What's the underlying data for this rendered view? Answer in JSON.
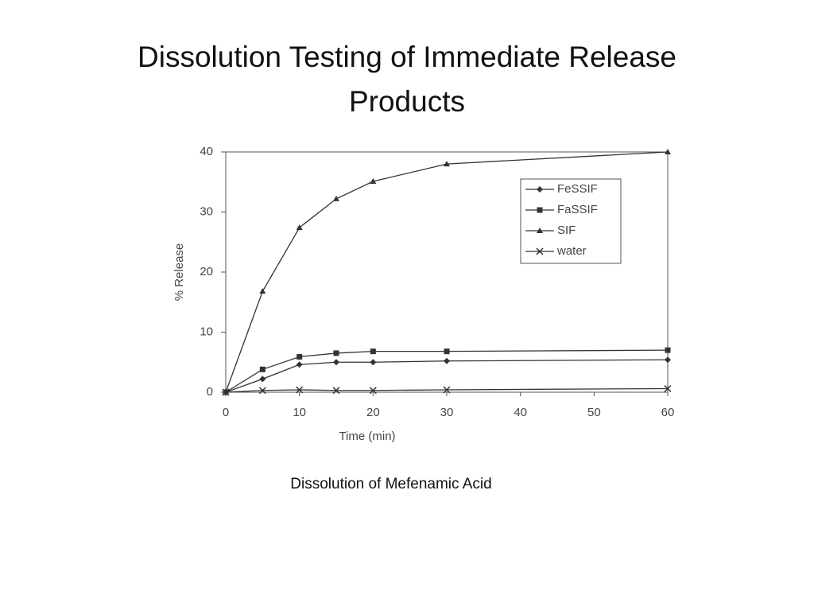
{
  "chart_data": {
    "type": "line",
    "title": "Dissolution Testing of Immediate Release Products",
    "caption": "Dissolution of Mefenamic Acid",
    "x_label": "Time (min)",
    "y_label": "% Release",
    "x": [
      0,
      5,
      10,
      15,
      20,
      30,
      60
    ],
    "series": [
      {
        "name": "FeSSIF",
        "color": "#333333",
        "marker": "diamond",
        "values": [
          0,
          2.2,
          4.6,
          5.0,
          5.0,
          5.2,
          5.4
        ]
      },
      {
        "name": "FaSSIF",
        "color": "#333333",
        "marker": "square",
        "values": [
          0,
          3.8,
          5.9,
          6.5,
          6.8,
          6.8,
          7.0
        ]
      },
      {
        "name": "SIF",
        "color": "#333333",
        "marker": "triangle",
        "values": [
          0,
          16.8,
          27.4,
          32.2,
          35.1,
          38.0,
          40
        ]
      },
      {
        "name": "water",
        "color": "#333333",
        "marker": "x",
        "values": [
          0,
          0.3,
          0.4,
          0.3,
          0.3,
          0.4,
          0.6
        ]
      }
    ],
    "xlim": [
      0,
      60
    ],
    "xticks": [
      0,
      10,
      20,
      30,
      40,
      50,
      60
    ],
    "ylim": [
      0,
      40
    ],
    "yticks": [
      0,
      10,
      20,
      30,
      40
    ],
    "legend": "upper right"
  }
}
